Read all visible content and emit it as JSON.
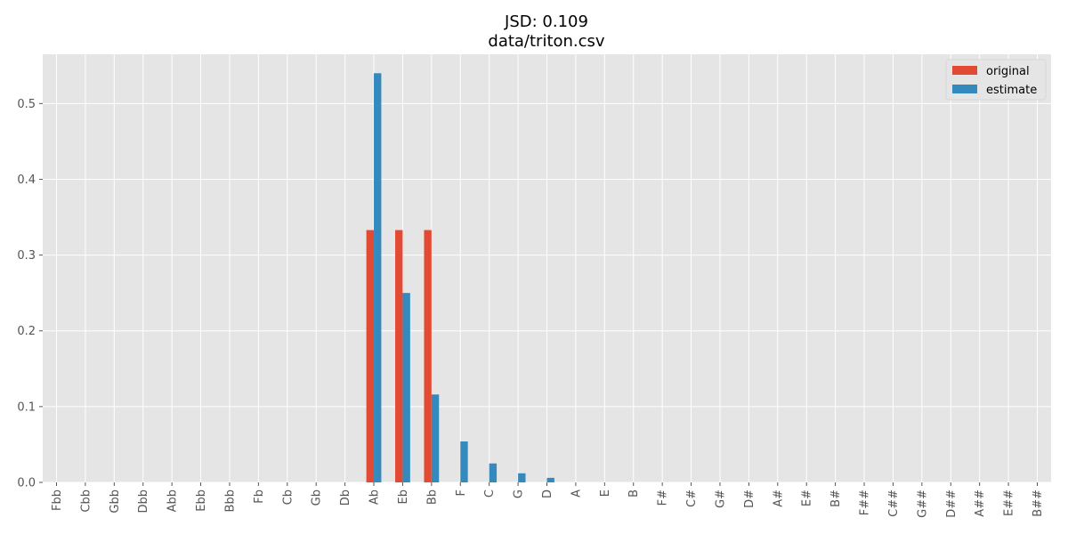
{
  "chart_data": {
    "type": "bar",
    "title": "JSD: 0.109",
    "subtitle": "data/triton.csv",
    "xlabel": "",
    "ylabel": "",
    "categories": [
      "Fbb",
      "Cbb",
      "Gbb",
      "Dbb",
      "Abb",
      "Ebb",
      "Bbb",
      "Fb",
      "Cb",
      "Gb",
      "Db",
      "Ab",
      "Eb",
      "Bb",
      "F",
      "C",
      "G",
      "D",
      "A",
      "E",
      "B",
      "F#",
      "C#",
      "G#",
      "D#",
      "A#",
      "E#",
      "B#",
      "F##",
      "C##",
      "G##",
      "D##",
      "A##",
      "E##",
      "B##"
    ],
    "series": [
      {
        "name": "original",
        "color": "#E24A33",
        "values": [
          0,
          0,
          0,
          0,
          0,
          0,
          0,
          0,
          0,
          0,
          0,
          0.333,
          0.333,
          0.333,
          0,
          0,
          0,
          0,
          0,
          0,
          0,
          0,
          0,
          0,
          0,
          0,
          0,
          0,
          0,
          0,
          0,
          0,
          0,
          0,
          0
        ]
      },
      {
        "name": "estimate",
        "color": "#348ABD",
        "values": [
          0,
          0,
          0,
          0,
          0,
          0,
          0,
          0,
          0,
          0,
          0,
          0.54,
          0.25,
          0.116,
          0.054,
          0.025,
          0.012,
          0.006,
          0,
          0,
          0,
          0,
          0,
          0,
          0,
          0,
          0,
          0,
          0,
          0,
          0,
          0,
          0,
          0,
          0
        ]
      }
    ],
    "ylim": [
      0,
      0.565
    ],
    "yticks": [
      "0.0",
      "0.1",
      "0.2",
      "0.3",
      "0.4",
      "0.5"
    ],
    "grid": true,
    "legend": "top-right",
    "background": "#E5E5E5"
  }
}
